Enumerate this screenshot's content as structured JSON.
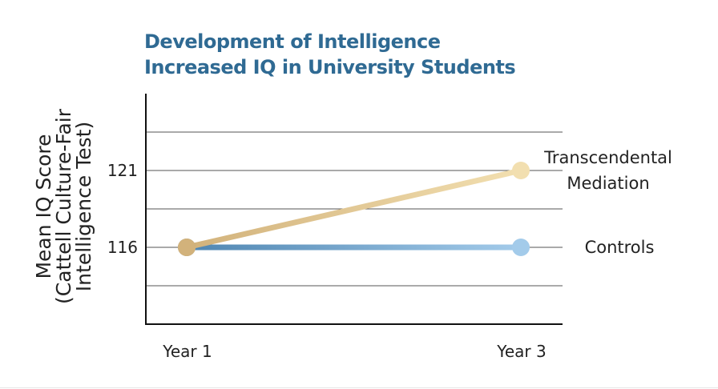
{
  "chart_data": {
    "type": "line",
    "title": "Development of Intelligence",
    "subtitle": "Increased IQ in University Students",
    "ylabel_lines": [
      "Mean IQ Score",
      "(Cattell Culture-Fair",
      "Intelligence Test)"
    ],
    "xlabel": "",
    "categories": [
      "Year 1",
      "Year 3"
    ],
    "yticks": [
      121,
      116
    ],
    "ylim": [
      111,
      126
    ],
    "series": [
      {
        "name": "Transcendental Mediation",
        "label_lines": [
          "Transcendental",
          "Mediation"
        ],
        "values": [
          116,
          121
        ],
        "color": "#e7cf9c",
        "color_start": "#d2b27b",
        "color_end": "#f2dfb0"
      },
      {
        "name": "Controls",
        "label_lines": [
          "Controls"
        ],
        "values": [
          116,
          116
        ],
        "color": "#7fb0d8",
        "color_start": "#4f86b2",
        "color_end": "#a3cbea"
      }
    ],
    "grid": true
  }
}
